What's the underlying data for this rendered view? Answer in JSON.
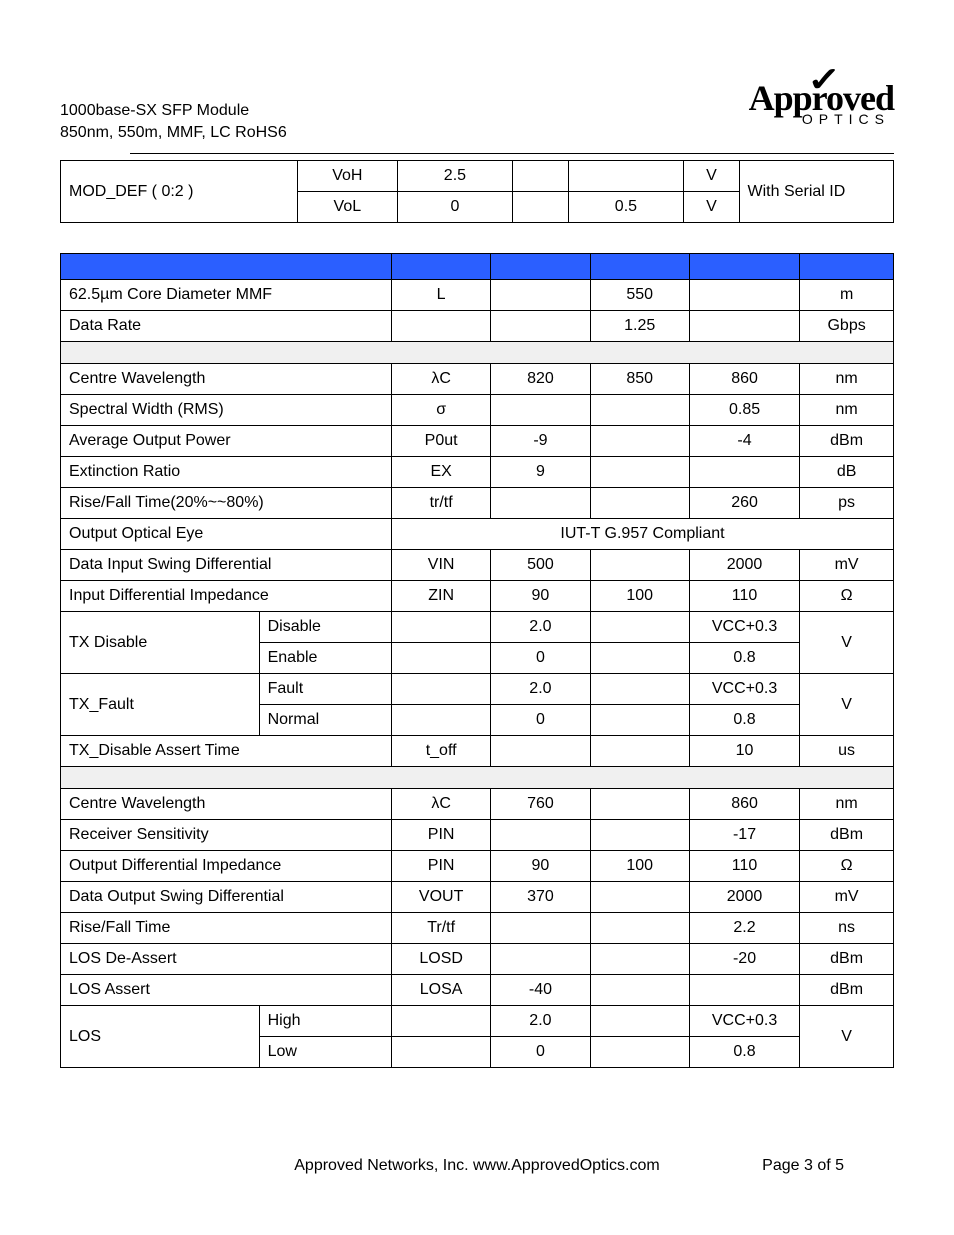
{
  "header": {
    "line1": "1000base-SX SFP Module",
    "line2": "850nm, 550m, MMF, LC RoHS6"
  },
  "logo": {
    "main": "Approved",
    "sub": "OPTICS"
  },
  "colors": {
    "header_row_bg": "#2b5fff",
    "section_row_bg": "#f0f0f0",
    "border": "#000000",
    "text": "#000000",
    "background": "#ffffff"
  },
  "table1": {
    "param": "MOD_DEF ( 0:2 )",
    "note": "With Serial ID",
    "rows": [
      {
        "sym": "VoH",
        "min": "2.5",
        "typ": "",
        "max": "",
        "unit": "V"
      },
      {
        "sym": "VoL",
        "min": "0",
        "typ": "",
        "max": "0.5",
        "unit": "V"
      }
    ]
  },
  "table2": {
    "sections": [
      {
        "kind": "header"
      },
      {
        "rows": [
          {
            "p1": "62.5µm Core Diameter MMF",
            "p2": "",
            "span": true,
            "sym": "L",
            "min": "",
            "typ": "550",
            "max": "",
            "unit": "m"
          },
          {
            "p1": "Data Rate",
            "p2": "",
            "span": true,
            "sym": "",
            "min": "",
            "typ": "1.25",
            "max": "",
            "unit": "Gbps"
          }
        ]
      },
      {
        "kind": "sect"
      },
      {
        "rows": [
          {
            "p1": "Centre Wavelength",
            "p2": "",
            "span": true,
            "sym": "λC",
            "min": "820",
            "typ": "850",
            "max": "860",
            "unit": "nm"
          },
          {
            "p1": "Spectral Width (RMS)",
            "p2": "",
            "span": true,
            "sym": "σ",
            "min": "",
            "typ": "",
            "max": "0.85",
            "unit": "nm"
          },
          {
            "p1": "Average Output Power",
            "p2": "",
            "span": true,
            "sym": "P0ut",
            "min": "-9",
            "typ": "",
            "max": "-4",
            "unit": "dBm"
          },
          {
            "p1": "Extinction Ratio",
            "p2": "",
            "span": true,
            "sym": "EX",
            "min": "9",
            "typ": "",
            "max": "",
            "unit": "dB"
          },
          {
            "p1": "Rise/Fall Time(20%~~80%)",
            "p2": "",
            "span": true,
            "sym": "tr/tf",
            "min": "",
            "typ": "",
            "max": "260",
            "unit": "ps"
          },
          {
            "p1": "Output Optical Eye",
            "p2": "",
            "span": true,
            "merged": "IUT-T G.957 Compliant"
          },
          {
            "p1": "Data Input Swing Differential",
            "p2": "",
            "span": true,
            "sym": "VIN",
            "min": "500",
            "typ": "",
            "max": "2000",
            "unit": "mV"
          },
          {
            "p1": "Input Differential Impedance",
            "p2": "",
            "span": true,
            "sym": "ZIN",
            "min": "90",
            "typ": "100",
            "max": "110",
            "unit": "Ω"
          }
        ]
      },
      {
        "group": {
          "p1": "TX Disable",
          "unit": "V",
          "rows": [
            {
              "p2": "Disable",
              "sym": "",
              "min": "2.0",
              "typ": "",
              "max": "VCC+0.3"
            },
            {
              "p2": "Enable",
              "sym": "",
              "min": "0",
              "typ": "",
              "max": "0.8"
            }
          ]
        }
      },
      {
        "group": {
          "p1": "TX_Fault",
          "unit": "V",
          "rows": [
            {
              "p2": "Fault",
              "sym": "",
              "min": "2.0",
              "typ": "",
              "max": "VCC+0.3"
            },
            {
              "p2": "Normal",
              "sym": "",
              "min": "0",
              "typ": "",
              "max": "0.8"
            }
          ]
        }
      },
      {
        "rows": [
          {
            "p1": "TX_Disable Assert Time",
            "p2": "",
            "span": true,
            "sym": "t_off",
            "min": "",
            "typ": "",
            "max": "10",
            "unit": "us"
          }
        ]
      },
      {
        "kind": "sect"
      },
      {
        "rows": [
          {
            "p1": "Centre Wavelength",
            "p2": "",
            "span": true,
            "sym": "λC",
            "min": "760",
            "typ": "",
            "max": "860",
            "unit": "nm"
          },
          {
            "p1": "Receiver Sensitivity",
            "p2": "",
            "span": true,
            "sym": "PIN",
            "min": "",
            "typ": "",
            "max": "-17",
            "unit": "dBm"
          },
          {
            "p1": "Output Differential Impedance",
            "p2": "",
            "span": true,
            "sym": "PIN",
            "min": "90",
            "typ": "100",
            "max": "110",
            "unit": "Ω"
          },
          {
            "p1": "Data Output Swing Differential",
            "p2": "",
            "span": true,
            "sym": "VOUT",
            "min": "370",
            "typ": "",
            "max": "2000",
            "unit": "mV"
          },
          {
            "p1": "Rise/Fall Time",
            "p2": "",
            "span": true,
            "sym": "Tr/tf",
            "min": "",
            "typ": "",
            "max": "2.2",
            "unit": "ns"
          },
          {
            "p1": "LOS De-Assert",
            "p2": "",
            "span": true,
            "sym": "LOSD",
            "min": "",
            "typ": "",
            "max": "-20",
            "unit": "dBm"
          },
          {
            "p1": "LOS Assert",
            "p2": "",
            "span": true,
            "sym": "LOSA",
            "min": "-40",
            "typ": "",
            "max": "",
            "unit": "dBm"
          }
        ]
      },
      {
        "group": {
          "p1": "LOS",
          "unit": "V",
          "rows": [
            {
              "p2": "High",
              "sym": "",
              "min": "2.0",
              "typ": "",
              "max": "VCC+0.3"
            },
            {
              "p2": "Low",
              "sym": "",
              "min": "0",
              "typ": "",
              "max": "0.8"
            }
          ]
        }
      }
    ]
  },
  "footer": {
    "text": "Approved Networks, Inc.  www.ApprovedOptics.com",
    "page": "Page 3 of 5"
  }
}
